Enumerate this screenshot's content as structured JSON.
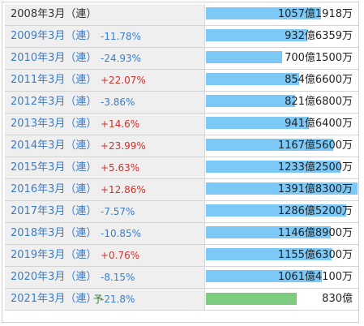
{
  "rows": [
    {
      "year": "2008年3月（連）",
      "change": "",
      "direction": "",
      "forecast_mark": "",
      "value_text": "1057億1918万",
      "value_oku": 1057.1918,
      "link": false
    },
    {
      "year": "2009年3月（連）",
      "change": "-11.78%",
      "direction": "down",
      "forecast_mark": "",
      "value_text": "932億6359万",
      "value_oku": 932.6359,
      "link": true
    },
    {
      "year": "2010年3月（連）",
      "change": "-24.93%",
      "direction": "down",
      "forecast_mark": "",
      "value_text": "700億1500万",
      "value_oku": 700.15,
      "link": true
    },
    {
      "year": "2011年3月（連）",
      "change": "+22.07%",
      "direction": "up",
      "forecast_mark": "",
      "value_text": "854億6600万",
      "value_oku": 854.66,
      "link": true
    },
    {
      "year": "2012年3月（連）",
      "change": "-3.86%",
      "direction": "down",
      "forecast_mark": "",
      "value_text": "821億6800万",
      "value_oku": 821.68,
      "link": true
    },
    {
      "year": "2013年3月（連）",
      "change": "+14.6%",
      "direction": "up",
      "forecast_mark": "",
      "value_text": "941億6400万",
      "value_oku": 941.64,
      "link": true
    },
    {
      "year": "2014年3月（連）",
      "change": "+23.99%",
      "direction": "up",
      "forecast_mark": "",
      "value_text": "1167億5600万",
      "value_oku": 1167.56,
      "link": true
    },
    {
      "year": "2015年3月（連）",
      "change": "+5.63%",
      "direction": "up",
      "forecast_mark": "",
      "value_text": "1233億2500万",
      "value_oku": 1233.25,
      "link": true
    },
    {
      "year": "2016年3月（連）",
      "change": "+12.86%",
      "direction": "up",
      "forecast_mark": "",
      "value_text": "1391億8300万",
      "value_oku": 1391.83,
      "link": true
    },
    {
      "year": "2017年3月（連）",
      "change": "-7.57%",
      "direction": "down",
      "forecast_mark": "",
      "value_text": "1286億5200万",
      "value_oku": 1286.52,
      "link": true
    },
    {
      "year": "2018年3月（連）",
      "change": "-10.85%",
      "direction": "down",
      "forecast_mark": "",
      "value_text": "1146億8900万",
      "value_oku": 1146.89,
      "link": true
    },
    {
      "year": "2019年3月（連）",
      "change": "+0.76%",
      "direction": "up",
      "forecast_mark": "",
      "value_text": "1155億6300万",
      "value_oku": 1155.63,
      "link": true
    },
    {
      "year": "2020年3月（連）",
      "change": "-8.15%",
      "direction": "down",
      "forecast_mark": "",
      "value_text": "1061億4100万",
      "value_oku": 1061.41,
      "link": true
    },
    {
      "year": "2021年3月（連）",
      "change": "-21.8%",
      "direction": "down",
      "forecast_mark": "予",
      "value_text": "830億",
      "value_oku": 830,
      "link": true,
      "forecast": true
    }
  ],
  "colors": {
    "bar_actual": "#7cc8f7",
    "bar_forecast": "#7ccb7f",
    "change_up": "#d0312d",
    "change_down": "#3a7dc9",
    "year_link": "#3a7dc9",
    "label_bg": "#efefef"
  }
}
